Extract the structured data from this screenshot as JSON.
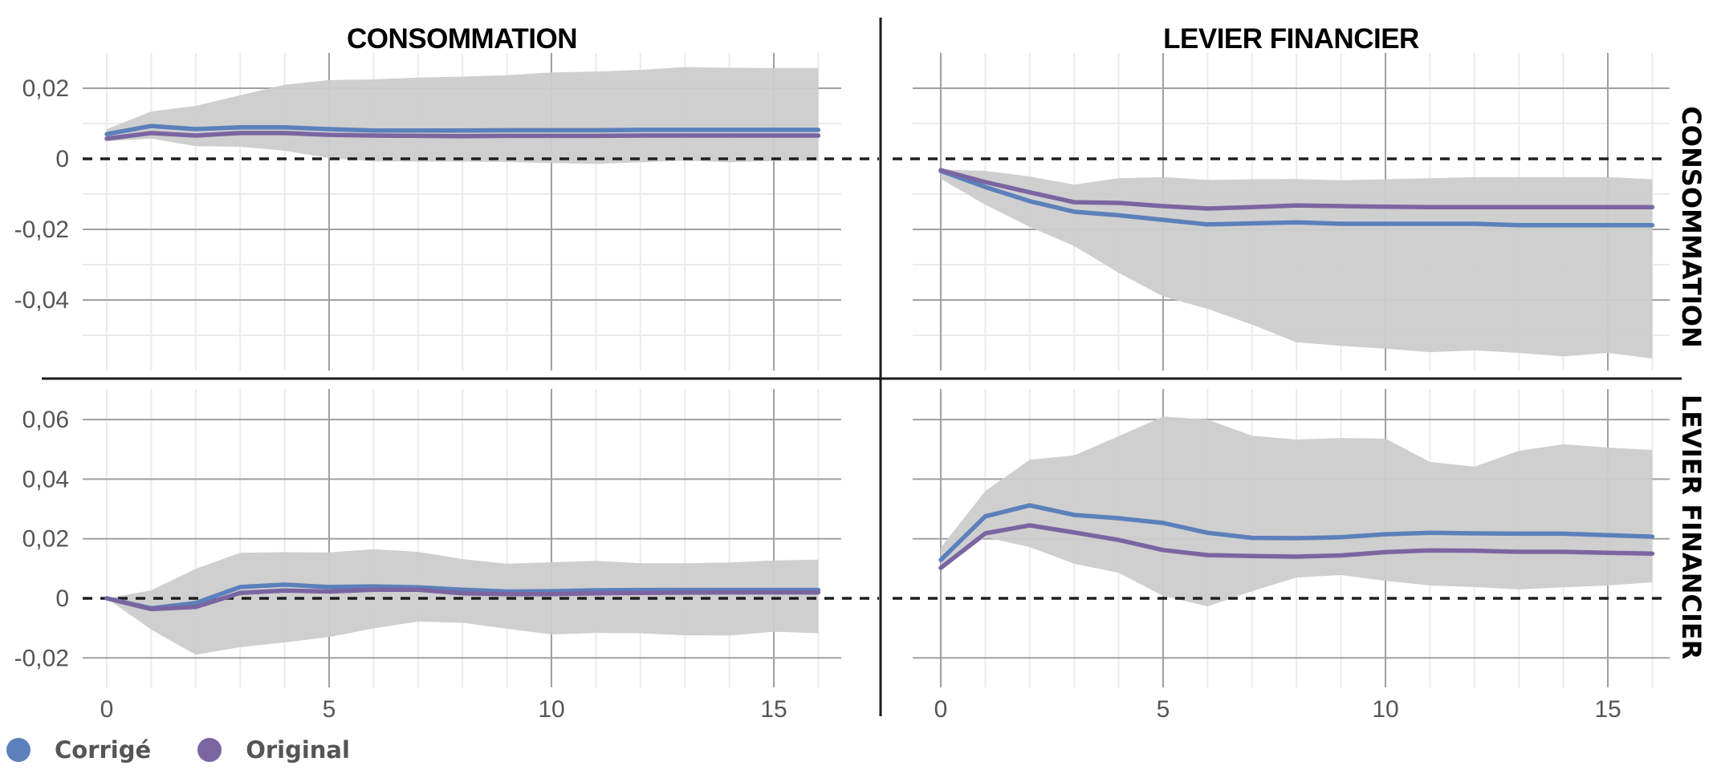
{
  "chart_data": {
    "type": "line",
    "title": "",
    "xlabel": "",
    "ylabel": "",
    "x": [
      0,
      1,
      2,
      3,
      4,
      5,
      6,
      7,
      8,
      9,
      10,
      11,
      12,
      13,
      14,
      15,
      16
    ],
    "x_ticks": [
      0,
      5,
      10,
      15
    ],
    "x_tick_labels": [
      "0",
      "5",
      "10",
      "15"
    ],
    "xlim": [
      -0.75,
      16.75
    ],
    "grid": true,
    "legend_position": "bottom-left",
    "column_titles": [
      "CONSOMMATION",
      "LEVIER FINANCIER"
    ],
    "row_titles": [
      "CONSOMMATION",
      "LEVIER FINANCIER"
    ],
    "legend": [
      {
        "name": "Corrigé",
        "color": "#5b80bb"
      },
      {
        "name": "Original",
        "color": "#7b65a1"
      }
    ],
    "band_color": "#cccccc",
    "rows": [
      {
        "row_title": "CONSOMMATION",
        "ylim": [
          -0.0585,
          0.0295
        ],
        "y_ticks": [
          0.02,
          0,
          -0.02,
          -0.04
        ],
        "y_tick_labels": [
          "0,02",
          "0",
          "-0,02",
          "-0,04"
        ],
        "y_minor": [
          0.01,
          -0.01,
          -0.03,
          -0.05
        ],
        "panels": [
          {
            "column_title": "CONSOMMATION",
            "series": [
              {
                "name": "Corrigé",
                "values": [
                  0.007,
                  0.0093,
                  0.0084,
                  0.0089,
                  0.0089,
                  0.0084,
                  0.008,
                  0.008,
                  0.008,
                  0.0081,
                  0.0081,
                  0.0081,
                  0.0082,
                  0.0082,
                  0.0082,
                  0.0082,
                  0.0082
                ]
              },
              {
                "name": "Original",
                "values": [
                  0.0057,
                  0.0073,
                  0.0066,
                  0.0073,
                  0.0073,
                  0.0068,
                  0.0066,
                  0.0065,
                  0.0064,
                  0.0065,
                  0.0065,
                  0.0065,
                  0.0066,
                  0.0066,
                  0.0066,
                  0.0066,
                  0.0066
                ]
              }
            ],
            "band_upper": [
              0.0084,
              0.0134,
              0.015,
              0.018,
              0.021,
              0.0223,
              0.0225,
              0.023,
              0.0233,
              0.0237,
              0.0245,
              0.0247,
              0.0252,
              0.026,
              0.0258,
              0.0257,
              0.0257
            ],
            "band_lower": [
              0.005,
              0.0057,
              0.0036,
              0.0034,
              0.0023,
              0.0002,
              -0.0007,
              -0.0008,
              -0.0008,
              -0.0009,
              -0.0012,
              -0.0014,
              -0.001,
              -0.0005,
              -0.001,
              -0.0006,
              -0.0005
            ]
          },
          {
            "column_title": "LEVIER FINANCIER",
            "series": [
              {
                "name": "Corrigé",
                "values": [
                  -0.0034,
                  -0.008,
                  -0.012,
                  -0.015,
                  -0.016,
                  -0.0173,
                  -0.0186,
                  -0.0183,
                  -0.018,
                  -0.0184,
                  -0.0184,
                  -0.0184,
                  -0.0184,
                  -0.0188,
                  -0.0188,
                  -0.0188,
                  -0.0188
                ]
              },
              {
                "name": "Original",
                "values": [
                  -0.0032,
                  -0.0066,
                  -0.0095,
                  -0.0123,
                  -0.0125,
                  -0.0134,
                  -0.0141,
                  -0.0137,
                  -0.0132,
                  -0.0134,
                  -0.0136,
                  -0.0137,
                  -0.0137,
                  -0.0137,
                  -0.0137,
                  -0.0137,
                  -0.0137
                ]
              }
            ],
            "band_upper": [
              -0.003,
              -0.0034,
              -0.005,
              -0.0073,
              -0.0055,
              -0.0052,
              -0.006,
              -0.0058,
              -0.0057,
              -0.0061,
              -0.0058,
              -0.0055,
              -0.0052,
              -0.0052,
              -0.0052,
              -0.0052,
              -0.0058
            ],
            "band_lower": [
              -0.0057,
              -0.013,
              -0.0193,
              -0.0247,
              -0.0323,
              -0.039,
              -0.0425,
              -0.047,
              -0.052,
              -0.053,
              -0.0538,
              -0.0548,
              -0.0543,
              -0.055,
              -0.056,
              -0.055,
              -0.0566
            ]
          }
        ]
      },
      {
        "row_title": "LEVIER FINANCIER",
        "ylim": [
          -0.03,
          0.07
        ],
        "y_ticks": [
          0.06,
          0.04,
          0.02,
          0,
          -0.02
        ],
        "y_tick_labels": [
          "0,06",
          "0,04",
          "0,02",
          "0",
          "-0,02"
        ],
        "y_minor": [],
        "panels": [
          {
            "column_title": "CONSOMMATION",
            "series": [
              {
                "name": "Corrigé",
                "values": [
                  0.0,
                  -0.0033,
                  -0.0016,
                  0.0038,
                  0.0046,
                  0.0038,
                  0.004,
                  0.0037,
                  0.0029,
                  0.0023,
                  0.0024,
                  0.0027,
                  0.0028,
                  0.0028,
                  0.0028,
                  0.0028,
                  0.0028
                ]
              },
              {
                "name": "Original",
                "values": [
                  0.0,
                  -0.0036,
                  -0.0029,
                  0.0018,
                  0.0026,
                  0.0023,
                  0.0029,
                  0.0029,
                  0.0017,
                  0.0014,
                  0.0014,
                  0.0017,
                  0.0018,
                  0.0019,
                  0.002,
                  0.002,
                  0.002
                ]
              }
            ],
            "band_upper": [
              0.0,
              0.0027,
              0.0099,
              0.0153,
              0.0155,
              0.0154,
              0.0165,
              0.0156,
              0.0132,
              0.0116,
              0.0121,
              0.0126,
              0.0118,
              0.0118,
              0.012,
              0.0127,
              0.013
            ],
            "band_lower": [
              0.0,
              -0.0105,
              -0.0189,
              -0.0164,
              -0.0148,
              -0.013,
              -0.0101,
              -0.0078,
              -0.0082,
              -0.0102,
              -0.0121,
              -0.0116,
              -0.0117,
              -0.0124,
              -0.0125,
              -0.0112,
              -0.0117
            ]
          },
          {
            "column_title": "LEVIER FINANCIER",
            "series": [
              {
                "name": "Corrigé",
                "values": [
                  0.0129,
                  0.0275,
                  0.0312,
                  0.028,
                  0.0269,
                  0.0253,
                  0.022,
                  0.0203,
                  0.0202,
                  0.0205,
                  0.0215,
                  0.022,
                  0.0218,
                  0.0217,
                  0.0217,
                  0.0212,
                  0.0207
                ]
              },
              {
                "name": "Original",
                "values": [
                  0.0102,
                  0.0218,
                  0.0245,
                  0.0221,
                  0.0196,
                  0.0162,
                  0.0145,
                  0.0142,
                  0.014,
                  0.0144,
                  0.0155,
                  0.0161,
                  0.016,
                  0.0156,
                  0.0156,
                  0.0153,
                  0.015
                ]
              }
            ],
            "band_upper": [
              0.017,
              0.036,
              0.0465,
              0.048,
              0.0544,
              0.061,
              0.06,
              0.0546,
              0.0533,
              0.0538,
              0.0536,
              0.0458,
              0.0442,
              0.0495,
              0.0517,
              0.0506,
              0.0498
            ],
            "band_lower": [
              0.0095,
              0.0205,
              0.0172,
              0.0116,
              0.0086,
              0.0008,
              -0.0027,
              0.0024,
              0.007,
              0.0078,
              0.0059,
              0.0043,
              0.0038,
              0.003,
              0.0037,
              0.0043,
              0.0054
            ]
          }
        ]
      }
    ]
  }
}
